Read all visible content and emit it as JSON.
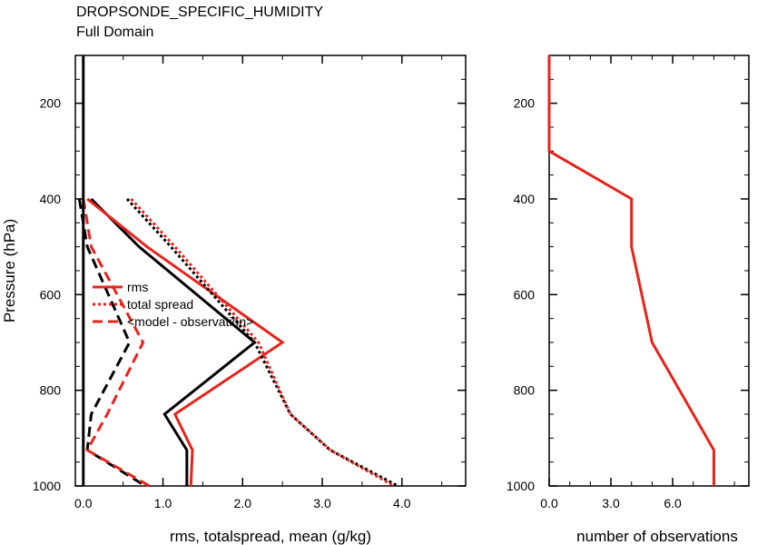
{
  "title": "DROPSONDE_SPECIFIC_HUMIDITY",
  "subtitle": "Full Domain",
  "colors": {
    "prior": "#000000",
    "posterior": "#e8231b"
  },
  "chart_data": [
    {
      "type": "line",
      "xlabel": "rms, totalspread, mean (g/kg)",
      "ylabel": "Pressure (hPa)",
      "xlim": [
        -0.1,
        4.8
      ],
      "ylim": [
        1000,
        100
      ],
      "xticks": [
        "0.0",
        "1.0",
        "2.0",
        "3.0",
        "4.0"
      ],
      "xtick_values": [
        0,
        1,
        2,
        3,
        4
      ],
      "yticks": [
        "200",
        "400",
        "600",
        "800",
        "1000"
      ],
      "ytick_values": [
        200,
        400,
        600,
        800,
        1000
      ],
      "pressure": [
        400,
        500,
        700,
        850,
        925,
        1000
      ],
      "legend": {
        "placement": "center-left",
        "entries": [
          {
            "label": "rms",
            "dash": "solid"
          },
          {
            "label": "total spread",
            "dash": "dotted"
          },
          {
            "label": "<model - observation>",
            "dash": "dashed"
          }
        ]
      },
      "series": [
        {
          "stat": "rms",
          "color": "prior",
          "dash": "solid",
          "values": [
            0.1,
            0.7,
            2.15,
            1.02,
            1.3,
            1.3
          ]
        },
        {
          "stat": "rms",
          "color": "posterior",
          "dash": "solid",
          "values": [
            0.05,
            0.8,
            2.5,
            1.15,
            1.37,
            1.35
          ]
        },
        {
          "stat": "total spread",
          "color": "prior",
          "dash": "dotted",
          "values": [
            0.55,
            1.1,
            2.15,
            2.6,
            3.1,
            3.95
          ]
        },
        {
          "stat": "total spread",
          "color": "posterior",
          "dash": "dotted",
          "values": [
            0.6,
            1.15,
            2.2,
            2.6,
            3.1,
            3.9
          ]
        },
        {
          "stat": "<model - observation>",
          "color": "prior",
          "dash": "dashed",
          "values": [
            -0.05,
            0.05,
            0.58,
            0.1,
            0.05,
            0.78
          ]
        },
        {
          "stat": "<model - observation>",
          "color": "posterior",
          "dash": "dashed",
          "values": [
            0.0,
            0.1,
            0.75,
            0.3,
            0.05,
            0.83
          ]
        },
        {
          "stat": "zero line",
          "color": "prior",
          "dash": "solid",
          "values": [
            0,
            0,
            0,
            0,
            0,
            0
          ],
          "full_height": true
        }
      ]
    },
    {
      "type": "line",
      "xlabel": "number of observations",
      "xlim": [
        0,
        9.7
      ],
      "ylim": [
        1000,
        100
      ],
      "xticks": [
        "0.0",
        "3.0",
        "6.0"
      ],
      "xtick_values": [
        0,
        3,
        6
      ],
      "yticks": [
        "200",
        "400",
        "600",
        "800",
        "1000"
      ],
      "ytick_values": [
        200,
        400,
        600,
        800,
        1000
      ],
      "series": [
        {
          "color": "posterior",
          "dash": "solid",
          "points": [
            [
              0,
              100
            ],
            [
              0,
              300
            ],
            [
              4,
              400
            ],
            [
              4,
              500
            ],
            [
              5,
              700
            ],
            [
              8,
              925
            ],
            [
              8,
              1000
            ]
          ]
        }
      ]
    }
  ]
}
